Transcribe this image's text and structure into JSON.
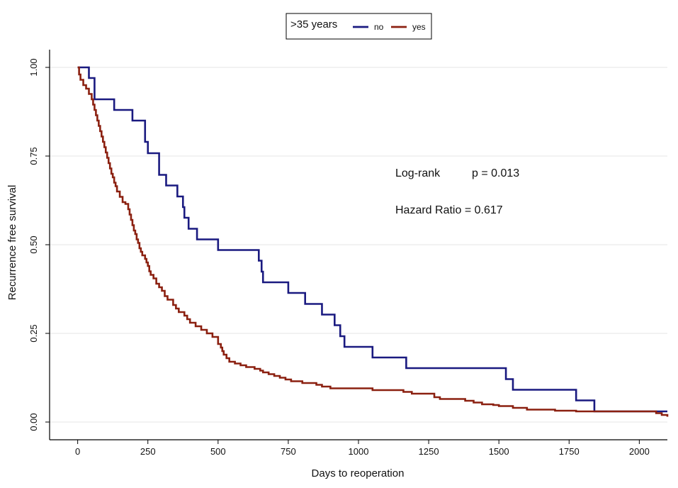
{
  "chart_data": {
    "type": "line",
    "step": true,
    "xlabel": "Days to reoperation",
    "ylabel": "Recurrence free survival",
    "xlim": [
      -100,
      2100
    ],
    "ylim": [
      -0.05,
      1.05
    ],
    "xticks": [
      0,
      250,
      500,
      750,
      1000,
      1250,
      1500,
      1750,
      2000
    ],
    "xtick_labels": [
      "0",
      "250",
      "500",
      "750",
      "1000",
      "1250",
      "1500",
      "1750",
      "2000"
    ],
    "yticks": [
      0,
      0.25,
      0.5,
      0.75,
      1
    ],
    "ytick_labels": [
      "0.00",
      "0.25",
      "0.50",
      "0.75",
      "1.00"
    ],
    "grid": "horizontal",
    "legend": {
      "title": ">35 years",
      "placement": "top-center",
      "entries": [
        "no",
        "yes"
      ]
    },
    "annotations": [
      "Log-rank",
      "p = 0.013",
      "Hazard Ratio = 0.617"
    ],
    "series": [
      {
        "name": "no",
        "color": "#1a1a80",
        "x": [
          0,
          40,
          60,
          130,
          195,
          240,
          250,
          290,
          315,
          355,
          375,
          380,
          395,
          425,
          500,
          645,
          655,
          660,
          750,
          810,
          870,
          915,
          935,
          950,
          1050,
          1170,
          1525,
          1550,
          1775,
          1840,
          2100
        ],
        "y": [
          1.0,
          0.97,
          0.91,
          0.88,
          0.85,
          0.79,
          0.758,
          0.697,
          0.667,
          0.636,
          0.606,
          0.576,
          0.545,
          0.515,
          0.485,
          0.455,
          0.424,
          0.394,
          0.364,
          0.333,
          0.303,
          0.273,
          0.242,
          0.212,
          0.182,
          0.152,
          0.121,
          0.091,
          0.061,
          0.03,
          0.03
        ]
      },
      {
        "name": "yes",
        "color": "#8b2010",
        "x": [
          0,
          5,
          10,
          20,
          30,
          40,
          50,
          55,
          60,
          65,
          70,
          75,
          80,
          85,
          90,
          95,
          100,
          105,
          110,
          115,
          120,
          125,
          130,
          135,
          140,
          150,
          160,
          170,
          180,
          185,
          190,
          195,
          200,
          205,
          210,
          215,
          220,
          225,
          230,
          240,
          245,
          250,
          255,
          260,
          270,
          280,
          290,
          300,
          310,
          320,
          340,
          350,
          360,
          380,
          390,
          400,
          420,
          440,
          460,
          480,
          500,
          510,
          515,
          520,
          530,
          540,
          560,
          580,
          600,
          630,
          650,
          660,
          680,
          700,
          720,
          740,
          760,
          800,
          850,
          870,
          900,
          1050,
          1160,
          1190,
          1270,
          1290,
          1380,
          1410,
          1440,
          1480,
          1500,
          1550,
          1600,
          1700,
          1775,
          1790,
          2050,
          2060,
          2080,
          2100
        ],
        "y": [
          1.0,
          0.98,
          0.965,
          0.95,
          0.94,
          0.925,
          0.91,
          0.895,
          0.88,
          0.865,
          0.85,
          0.835,
          0.82,
          0.805,
          0.79,
          0.775,
          0.76,
          0.745,
          0.73,
          0.715,
          0.7,
          0.69,
          0.675,
          0.665,
          0.65,
          0.635,
          0.62,
          0.615,
          0.6,
          0.585,
          0.57,
          0.555,
          0.54,
          0.53,
          0.515,
          0.505,
          0.49,
          0.48,
          0.47,
          0.46,
          0.45,
          0.44,
          0.425,
          0.415,
          0.405,
          0.39,
          0.38,
          0.37,
          0.355,
          0.345,
          0.33,
          0.32,
          0.31,
          0.3,
          0.29,
          0.28,
          0.27,
          0.26,
          0.25,
          0.24,
          0.22,
          0.21,
          0.2,
          0.19,
          0.18,
          0.17,
          0.165,
          0.16,
          0.155,
          0.15,
          0.145,
          0.14,
          0.135,
          0.13,
          0.125,
          0.12,
          0.115,
          0.11,
          0.105,
          0.1,
          0.095,
          0.09,
          0.085,
          0.08,
          0.07,
          0.065,
          0.06,
          0.055,
          0.05,
          0.048,
          0.045,
          0.04,
          0.035,
          0.032,
          0.03,
          0.03,
          0.03,
          0.025,
          0.02,
          0.015
        ]
      }
    ]
  }
}
